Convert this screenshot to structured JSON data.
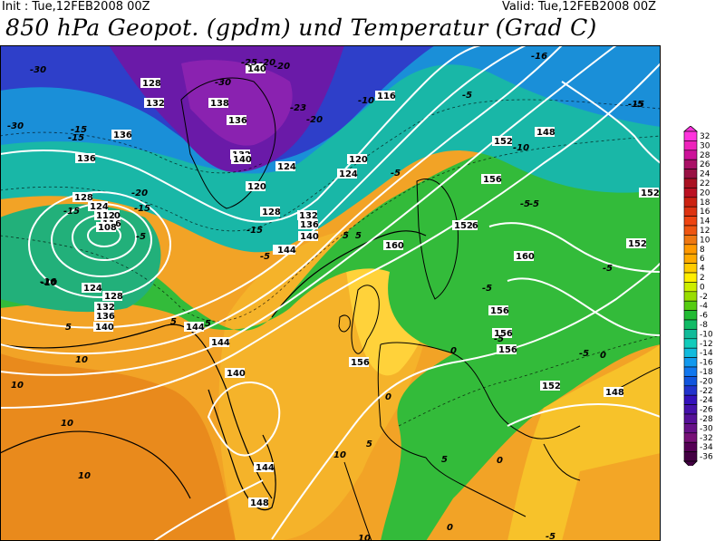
{
  "header": {
    "init": "Init : Tue,12FEB2008 00Z",
    "valid": "Valid: Tue,12FEB2008 00Z",
    "title": "850 hPa Geopot. (gpdm) und Temperatur (Grad C)"
  },
  "legend": {
    "labels": [
      "32",
      "30",
      "28",
      "26",
      "24",
      "22",
      "20",
      "18",
      "16",
      "14",
      "12",
      "10",
      "8",
      "6",
      "4",
      "2",
      "0",
      "-2",
      "-4",
      "-6",
      "-8",
      "-10",
      "-12",
      "-14",
      "-16",
      "-18",
      "-20",
      "-22",
      "-24",
      "-26",
      "-28",
      "-30",
      "-32",
      "-34",
      "-36"
    ],
    "colors": [
      "#ff33dd",
      "#ee22bb",
      "#cc1199",
      "#aa1166",
      "#991144",
      "#aa1122",
      "#bb1122",
      "#cc2211",
      "#dd3311",
      "#ee4411",
      "#ee5511",
      "#ee7711",
      "#ff9900",
      "#ffaa00",
      "#ffcc00",
      "#ffee00",
      "#ccee00",
      "#99dd00",
      "#55cc11",
      "#22bb33",
      "#11bb66",
      "#11bb99",
      "#11ccbb",
      "#11bbdd",
      "#1199ee",
      "#1177ee",
      "#1155dd",
      "#2233cc",
      "#3311bb",
      "#4411aa",
      "#551199",
      "#661188",
      "#771177",
      "#550055",
      "#440044"
    ]
  },
  "map_labels": {
    "heights": [
      "128",
      "132",
      "136",
      "136",
      "140",
      "138",
      "136",
      "132",
      "128",
      "124",
      "120",
      "116",
      "112",
      "108",
      "124",
      "128",
      "132",
      "136",
      "140",
      "144",
      "144",
      "144",
      "140",
      "144",
      "148",
      "156",
      "152",
      "156",
      "148",
      "152",
      "156",
      "156",
      "160",
      "160",
      "156",
      "156",
      "152",
      "148",
      "152",
      "152",
      "124",
      "124",
      "120",
      "128",
      "132",
      "136",
      "140",
      "120",
      "116",
      "140",
      "144"
    ],
    "temps": [
      "-30",
      "-20",
      "-25",
      "-20",
      "-30",
      "-23",
      "-30",
      "-20",
      "-15",
      "-20",
      "-15",
      "-15",
      "-16",
      "-10",
      "-5",
      "-5",
      "-5",
      "-5",
      "-16",
      "-10",
      "-5",
      "-15",
      "-5",
      "-15",
      "-5",
      "-5",
      "-5",
      "0",
      "5",
      "5",
      "5",
      "5",
      "5",
      "10",
      "10",
      "10",
      "10",
      "10",
      "10",
      "5",
      "0",
      "0",
      "-5",
      "-5",
      "-5",
      "0",
      "0",
      "5",
      "-10",
      "-15"
    ]
  }
}
